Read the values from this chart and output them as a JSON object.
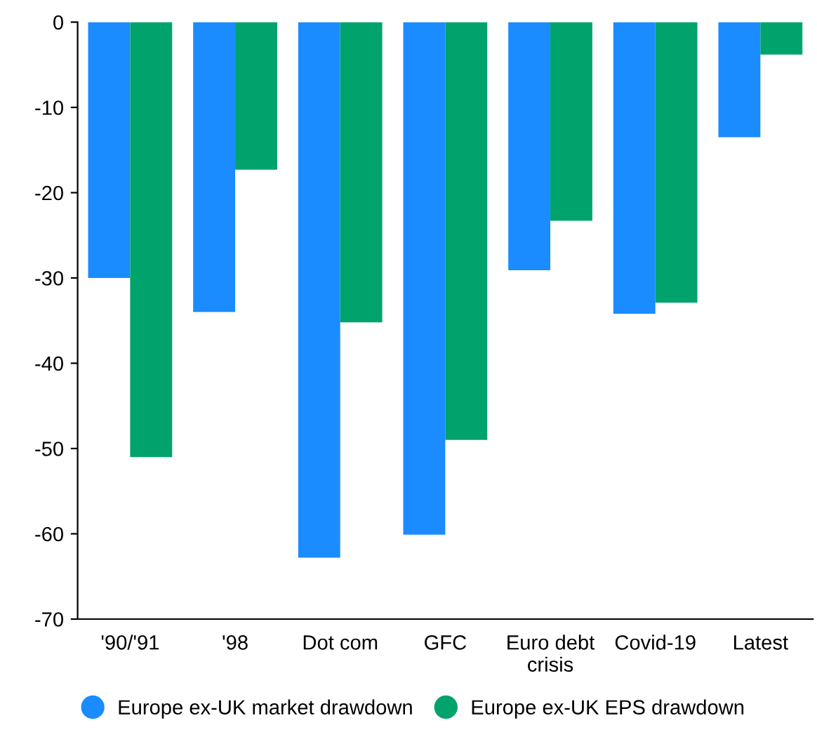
{
  "chart_data": {
    "type": "bar",
    "categories": [
      "'90/'91",
      "'98",
      "Dot com",
      "GFC",
      "Euro debt\ncrisis",
      "Covid-19",
      "Latest"
    ],
    "series": [
      {
        "name": "Europe ex-UK market drawdown",
        "color": "#1a8cff",
        "values": [
          -30,
          -34,
          -62.8,
          -60.1,
          -29.1,
          -34.2,
          -13.5
        ]
      },
      {
        "name": "Europe ex-UK EPS drawdown",
        "color": "#00a36c",
        "values": [
          -51,
          -17.3,
          -35.2,
          -49,
          -23.3,
          -32.9,
          -3.8
        ]
      }
    ],
    "ylim": [
      -70,
      0
    ],
    "yticks": [
      -70,
      -60,
      -50,
      -40,
      -30,
      -20,
      -10,
      0
    ],
    "grid": false,
    "legend": "bottom"
  }
}
